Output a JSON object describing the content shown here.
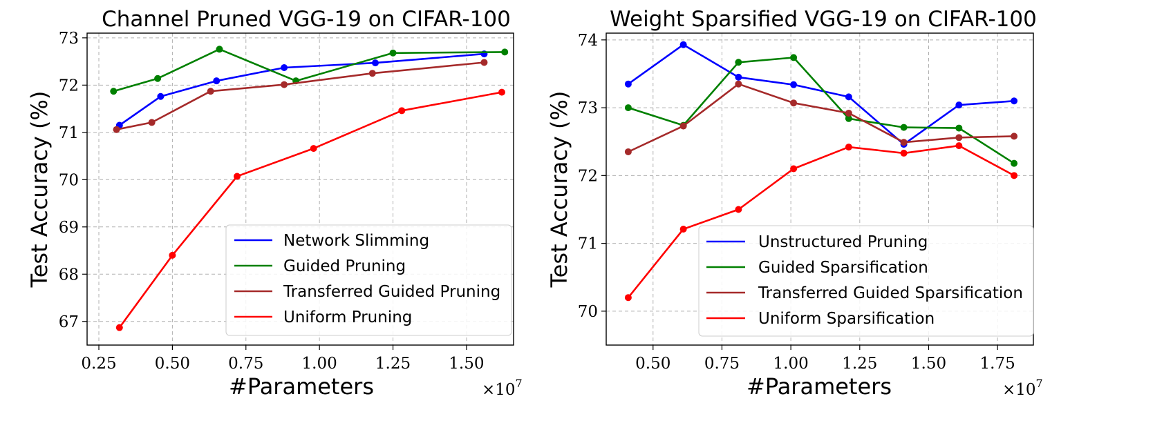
{
  "chart_data": [
    {
      "type": "line",
      "title": "Channel Pruned VGG-19 on CIFAR-100",
      "xlabel": "#Parameters",
      "ylabel": "Test Accuracy (%)",
      "x_exponent_label": "×10",
      "x_exponent_power": "7",
      "xlim": [
        0.21,
        1.66
      ],
      "ylim": [
        66.5,
        73.1
      ],
      "xticks": [
        0.25,
        0.5,
        0.75,
        1.0,
        1.25,
        1.5
      ],
      "xtick_labels": [
        "0.25",
        "0.50",
        "0.75",
        "1.00",
        "1.25",
        "1.50"
      ],
      "yticks": [
        67,
        68,
        69,
        70,
        71,
        72,
        73
      ],
      "ytick_labels": [
        "67",
        "68",
        "69",
        "70",
        "71",
        "72",
        "73"
      ],
      "grid": true,
      "legend_position": "lower-right",
      "series": [
        {
          "name": "Network Slimming",
          "color": "#0000ff",
          "x": [
            0.32,
            0.46,
            0.65,
            0.88,
            1.19,
            1.56
          ],
          "y": [
            71.15,
            71.76,
            72.09,
            72.37,
            72.47,
            72.66
          ]
        },
        {
          "name": "Guided Pruning",
          "color": "#008000",
          "x": [
            0.3,
            0.45,
            0.66,
            0.92,
            1.25,
            1.63
          ],
          "y": [
            71.87,
            72.14,
            72.76,
            72.09,
            72.68,
            72.7
          ]
        },
        {
          "name": "Transferred Guided Pruning",
          "color": "#a52a2a",
          "x": [
            0.31,
            0.43,
            0.63,
            0.88,
            1.18,
            1.56
          ],
          "y": [
            71.06,
            71.21,
            71.87,
            72.01,
            72.25,
            72.48
          ]
        },
        {
          "name": "Uniform Pruning",
          "color": "#ff0000",
          "x": [
            0.32,
            0.5,
            0.72,
            0.98,
            1.28,
            1.62
          ],
          "y": [
            66.87,
            68.4,
            70.07,
            70.66,
            71.46,
            71.85
          ]
        }
      ]
    },
    {
      "type": "line",
      "title": "Weight Sparsified VGG-19 on CIFAR-100",
      "xlabel": "#Parameters",
      "ylabel": "Test Accuracy (%)",
      "x_exponent_label": "×10",
      "x_exponent_power": "7",
      "xlim": [
        0.33,
        1.88
      ],
      "ylim": [
        69.5,
        74.1
      ],
      "xticks": [
        0.5,
        0.75,
        1.0,
        1.25,
        1.5,
        1.75
      ],
      "xtick_labels": [
        "0.50",
        "0.75",
        "1.00",
        "1.25",
        "1.50",
        "1.75"
      ],
      "yticks": [
        70,
        71,
        72,
        73,
        74
      ],
      "ytick_labels": [
        "70",
        "71",
        "72",
        "73",
        "74"
      ],
      "grid": true,
      "legend_position": "lower-right",
      "series": [
        {
          "name": "Unstructured Pruning",
          "color": "#0000ff",
          "x": [
            0.41,
            0.61,
            0.81,
            1.01,
            1.21,
            1.41,
            1.61,
            1.81
          ],
          "y": [
            73.35,
            73.93,
            73.45,
            73.34,
            73.16,
            72.46,
            73.04,
            73.1
          ]
        },
        {
          "name": "Guided Sparsification",
          "color": "#008000",
          "x": [
            0.41,
            0.61,
            0.81,
            1.01,
            1.21,
            1.41,
            1.61,
            1.81
          ],
          "y": [
            73.0,
            72.74,
            73.67,
            73.74,
            72.84,
            72.71,
            72.7,
            72.18
          ]
        },
        {
          "name": "Transferred Guided Sparsification",
          "color": "#a52a2a",
          "x": [
            0.41,
            0.61,
            0.81,
            1.01,
            1.21,
            1.41,
            1.61,
            1.81
          ],
          "y": [
            72.35,
            72.73,
            73.35,
            73.07,
            72.92,
            72.49,
            72.56,
            72.58
          ]
        },
        {
          "name": "Uniform Sparsification",
          "color": "#ff0000",
          "x": [
            0.41,
            0.61,
            0.81,
            1.01,
            1.21,
            1.41,
            1.61,
            1.81
          ],
          "y": [
            70.2,
            71.21,
            71.5,
            72.1,
            72.42,
            72.33,
            72.44,
            72.0
          ]
        }
      ]
    }
  ]
}
